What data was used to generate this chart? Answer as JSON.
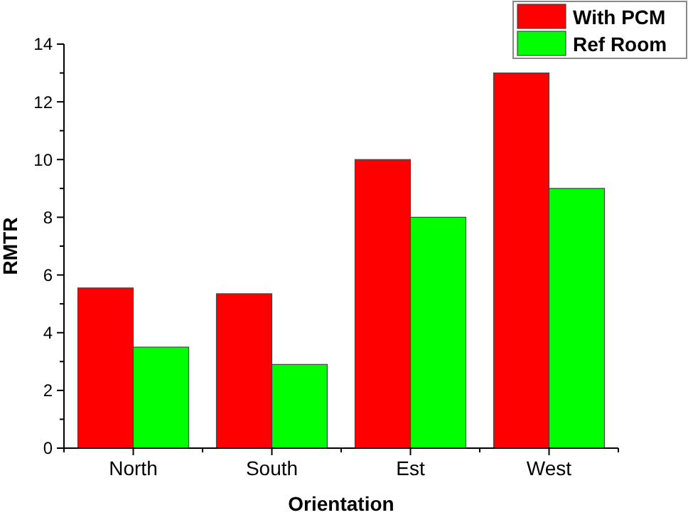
{
  "chart_data": {
    "type": "bar",
    "xlabel": "Orientation",
    "ylabel": "RMTR",
    "categories": [
      "North",
      "South",
      "Est",
      "West"
    ],
    "series": [
      {
        "name": "With PCM",
        "color": "#ff0000",
        "values": [
          5.55,
          5.35,
          10,
          13
        ]
      },
      {
        "name": "Ref Room",
        "color": "#00ff00",
        "values": [
          3.5,
          2.9,
          8,
          9
        ]
      }
    ],
    "ylim": [
      0,
      14
    ],
    "yticks": [
      0,
      {
        "value": 1,
        "label": null
      },
      2,
      {
        "value": 3,
        "label": null
      },
      4,
      {
        "value": 5,
        "label": null
      },
      6,
      {
        "value": 7,
        "label": null
      },
      8,
      {
        "value": 9,
        "label": null
      },
      10,
      {
        "value": 11,
        "label": null
      },
      12,
      {
        "value": 13,
        "label": null
      },
      14
    ],
    "legend": "top right",
    "grid": false
  }
}
